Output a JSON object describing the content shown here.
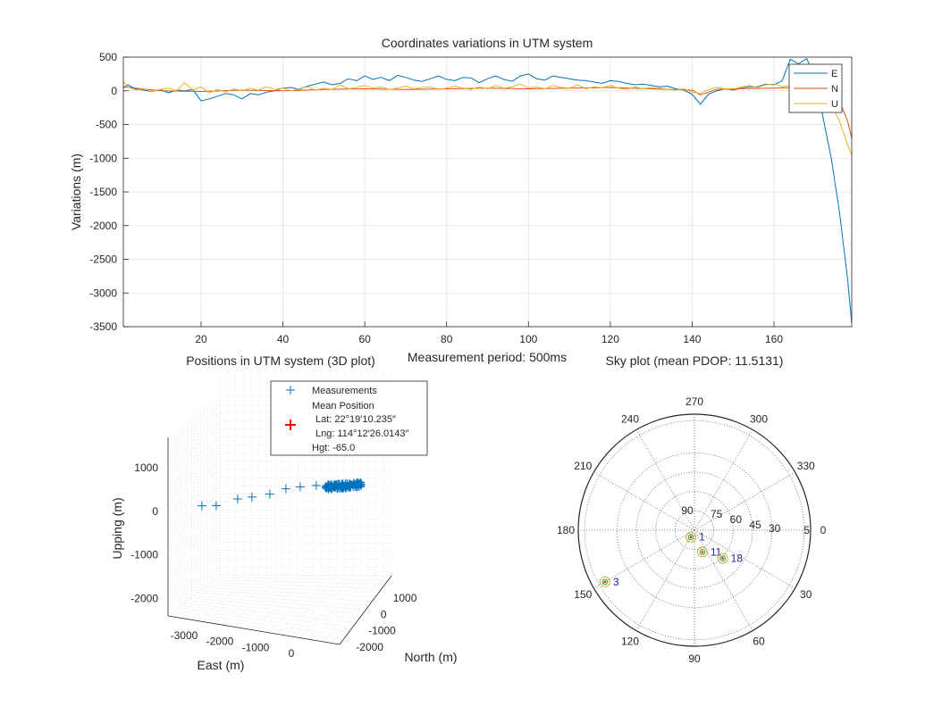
{
  "colors": {
    "E": "#0072BD",
    "N": "#D95319",
    "U": "#EDB120",
    "grid": "#e3e3e3",
    "axis": "#262626",
    "mean_marker": "#ff0000",
    "sat_label": "#1f1fa8"
  },
  "chart_data": [
    {
      "type": "line",
      "title": "Coordinates variations in UTM system",
      "xlabel": "Measurement period: 500ms",
      "ylabel": "Variations (m)",
      "xlim": [
        1,
        179
      ],
      "ylim": [
        -3500,
        500
      ],
      "xticks": [
        "20",
        "40",
        "60",
        "80",
        "100",
        "120",
        "140",
        "160"
      ],
      "yticks": [
        "500",
        "0",
        "-500",
        "-1000",
        "-1500",
        "-2000",
        "-2500",
        "-3000",
        "-3500"
      ],
      "grid": true,
      "legend": "top-right",
      "legend_entries": [
        "E",
        "N",
        "U"
      ],
      "series": [
        {
          "name": "E",
          "x": [
            1,
            2,
            4,
            6,
            8,
            10,
            12,
            14,
            16,
            18,
            20,
            22,
            24,
            26,
            28,
            30,
            32,
            34,
            36,
            38,
            40,
            42,
            44,
            46,
            48,
            50,
            52,
            54,
            56,
            58,
            60,
            62,
            64,
            66,
            68,
            70,
            72,
            74,
            76,
            78,
            80,
            82,
            84,
            86,
            88,
            90,
            92,
            94,
            96,
            98,
            100,
            102,
            104,
            106,
            108,
            110,
            112,
            114,
            116,
            118,
            120,
            122,
            124,
            126,
            128,
            130,
            132,
            134,
            136,
            138,
            140,
            142,
            144,
            146,
            148,
            150,
            152,
            154,
            156,
            158,
            160,
            162,
            164,
            166,
            168,
            170,
            172,
            174,
            176,
            178,
            179
          ],
          "y": [
            40,
            90,
            30,
            10,
            -10,
            20,
            -30,
            10,
            0,
            20,
            -150,
            -120,
            -80,
            -40,
            -60,
            -120,
            -40,
            -60,
            -20,
            0,
            40,
            50,
            20,
            70,
            100,
            130,
            90,
            110,
            180,
            150,
            220,
            170,
            200,
            150,
            230,
            200,
            160,
            140,
            180,
            220,
            170,
            150,
            200,
            190,
            120,
            180,
            220,
            170,
            140,
            220,
            250,
            180,
            160,
            220,
            200,
            180,
            160,
            150,
            130,
            110,
            150,
            140,
            110,
            90,
            100,
            80,
            60,
            70,
            30,
            10,
            -50,
            -200,
            -50,
            0,
            30,
            10,
            40,
            60,
            60,
            100,
            90,
            150,
            470,
            400,
            480,
            200,
            -400,
            -1000,
            -1800,
            -2800,
            -3450
          ]
        },
        {
          "name": "N",
          "x": [
            1,
            10,
            20,
            30,
            40,
            50,
            60,
            70,
            80,
            90,
            100,
            110,
            120,
            130,
            140,
            142,
            146,
            150,
            160,
            166,
            170,
            172,
            174,
            176,
            178,
            179
          ],
          "y": [
            60,
            0,
            -10,
            10,
            0,
            20,
            30,
            20,
            30,
            40,
            30,
            40,
            50,
            30,
            10,
            -60,
            20,
            30,
            40,
            50,
            80,
            60,
            40,
            -150,
            -450,
            -700
          ]
        },
        {
          "name": "U",
          "x": [
            1,
            2,
            4,
            6,
            8,
            10,
            12,
            14,
            16,
            18,
            20,
            22,
            24,
            26,
            28,
            30,
            32,
            34,
            36,
            38,
            40,
            42,
            44,
            46,
            48,
            50,
            52,
            54,
            56,
            58,
            60,
            62,
            64,
            66,
            68,
            70,
            72,
            74,
            76,
            78,
            80,
            82,
            84,
            86,
            88,
            90,
            92,
            94,
            96,
            98,
            100,
            102,
            104,
            106,
            108,
            110,
            112,
            114,
            116,
            118,
            120,
            122,
            124,
            126,
            128,
            130,
            132,
            134,
            136,
            138,
            140,
            142,
            144,
            146,
            148,
            150,
            152,
            154,
            156,
            158,
            160,
            162,
            164,
            166,
            168,
            170,
            172,
            174,
            176,
            178,
            179
          ],
          "y": [
            140,
            60,
            10,
            30,
            -10,
            20,
            40,
            0,
            120,
            10,
            60,
            -30,
            20,
            -20,
            30,
            0,
            40,
            10,
            60,
            20,
            40,
            0,
            30,
            60,
            10,
            40,
            20,
            90,
            30,
            50,
            80,
            40,
            60,
            20,
            40,
            70,
            30,
            50,
            60,
            20,
            40,
            70,
            40,
            20,
            60,
            30,
            80,
            40,
            60,
            100,
            40,
            60,
            30,
            80,
            50,
            40,
            90,
            30,
            60,
            50,
            80,
            40,
            20,
            60,
            30,
            50,
            40,
            20,
            10,
            30,
            -20,
            -40,
            20,
            50,
            30,
            20,
            60,
            80,
            50,
            90,
            100,
            60,
            80,
            140,
            120,
            180,
            0,
            -200,
            -450,
            -800,
            -950
          ]
        }
      ]
    },
    {
      "type": "scatter",
      "title": "Positions in UTM system (3D plot)",
      "xlabel": "East (m)",
      "ylabel": "North (m)",
      "zlabel": "Upping (m)",
      "xticks": [
        "-3000",
        "-2000",
        "-1000",
        "0"
      ],
      "yticks": [
        "1000",
        "0",
        "-1000",
        "-2000"
      ],
      "zticks": [
        "1000",
        "0",
        "-1000",
        "-2000"
      ],
      "grid": true,
      "legend": "top",
      "legend_entries": {
        "measurements": "Measurements",
        "mean_title": "Mean Position",
        "lat": "Lat: 22°19′10.235″",
        "lng": "Lng: 114°12′26.0143″",
        "hgt": "Hgt: -65.0"
      },
      "measurement_outliers": [
        {
          "east": -3450,
          "up": -380
        },
        {
          "east": -3050,
          "up": -350
        },
        {
          "east": -2450,
          "up": -160
        },
        {
          "east": -2050,
          "up": -90
        },
        {
          "east": -1550,
          "up": 10
        },
        {
          "east": -1100,
          "up": 160
        },
        {
          "east": -700,
          "up": 230
        },
        {
          "east": -250,
          "up": 290
        }
      ],
      "cluster": {
        "east_range": [
          0,
          1050
        ],
        "up_range": [
          270,
          470
        ],
        "count": 170
      }
    },
    {
      "type": "polar",
      "title": "Sky plot (mean PDOP: 11.5131)",
      "azimuth_labels": [
        "0",
        "30",
        "60",
        "90",
        "120",
        "150",
        "180",
        "210",
        "240",
        "270",
        "300",
        "330"
      ],
      "elevation_labels": [
        "90",
        "75",
        "60",
        "45",
        "30",
        "5"
      ],
      "satellites": [
        {
          "prn": "1",
          "azimuth": 117,
          "elevation": 84
        },
        {
          "prn": "11",
          "azimuth": 70,
          "elevation": 72
        },
        {
          "prn": "18",
          "azimuth": 45,
          "elevation": 59
        },
        {
          "prn": "3",
          "azimuth": 150,
          "elevation": 10
        }
      ]
    }
  ]
}
